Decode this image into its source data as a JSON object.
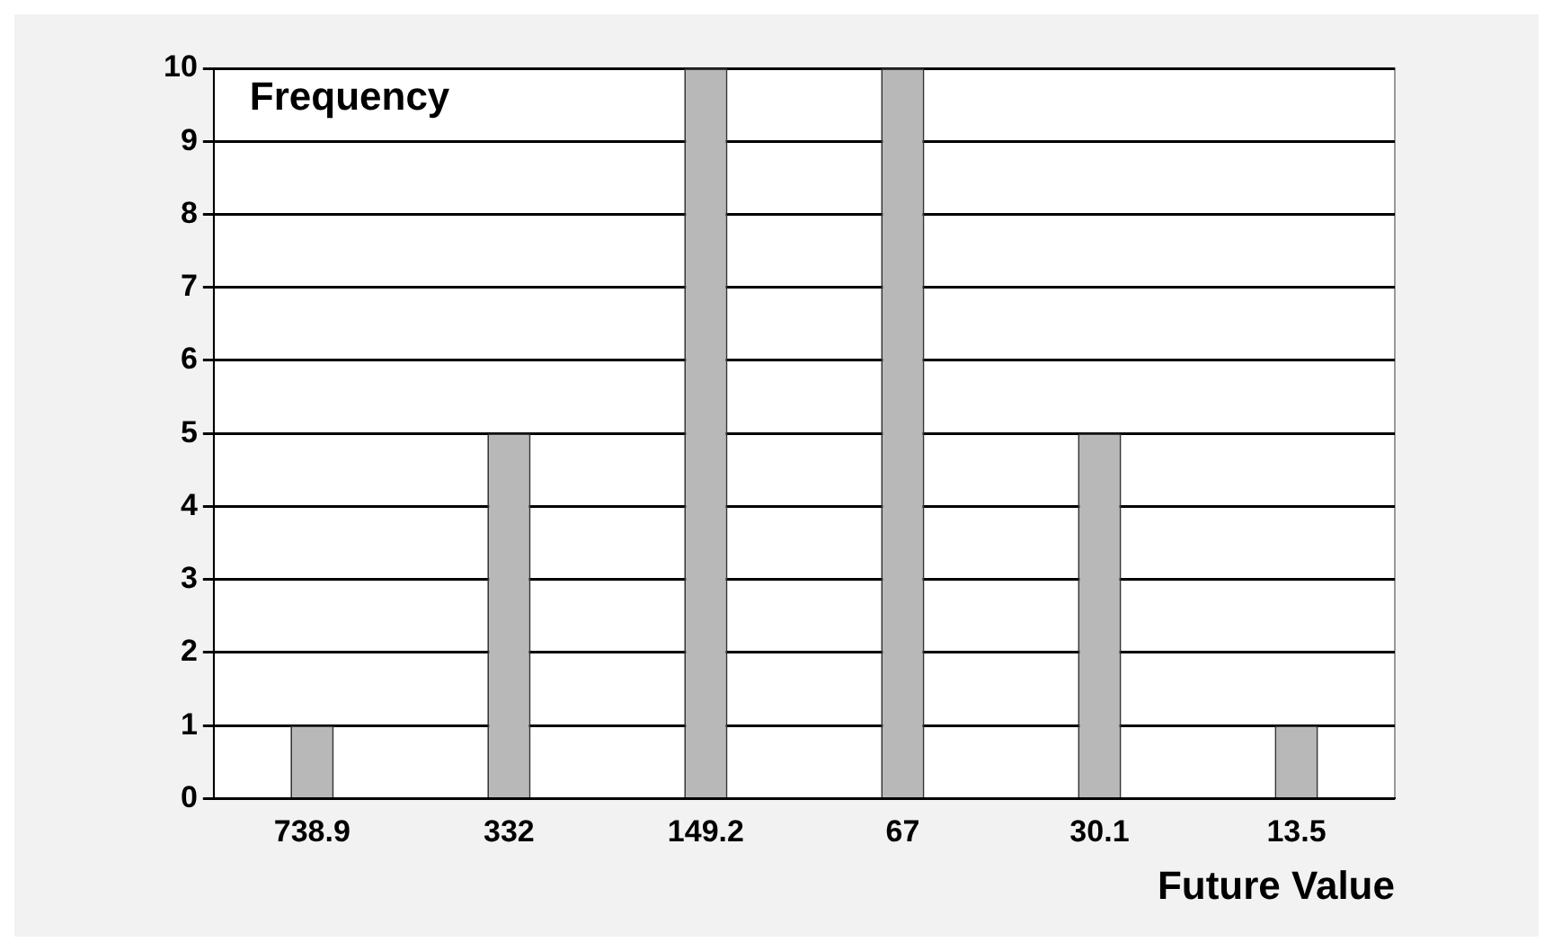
{
  "chart_data": {
    "type": "bar",
    "xlabel": "Future Value",
    "ylabel": "Frequency",
    "categories": [
      "738.9",
      "332",
      "149.2",
      "67",
      "30.1",
      "13.5"
    ],
    "values": [
      1,
      5,
      10,
      10,
      5,
      1
    ],
    "color": "#b8b8b8",
    "ylim": [
      0,
      10
    ],
    "yticks": [
      0,
      1,
      2,
      3,
      4,
      5,
      6,
      7,
      8,
      9,
      10
    ],
    "grid": "y",
    "legend": false
  }
}
